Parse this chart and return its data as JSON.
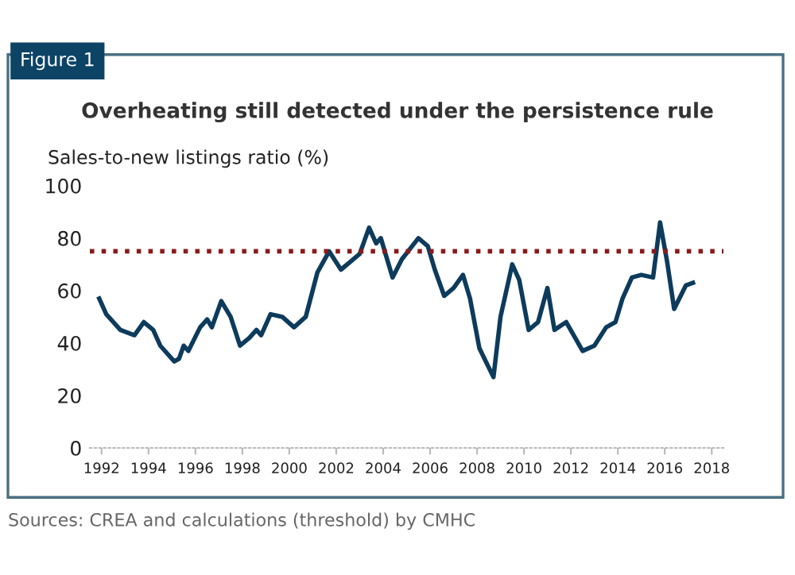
{
  "chart_data": {
    "type": "line",
    "title": "Overheating still detected under the persistence rule",
    "ylabel": "Sales-to-new listings ratio (%)",
    "annotations": [
      "Figure 1",
      "Sources: CREA and calculations (threshold) by CMHC"
    ],
    "series": [
      {
        "color": "#0d3b5c",
        "x": [
          1991.9,
          1992.2,
          1992.8,
          1993.4,
          1993.8,
          1994.2,
          1994.5,
          1995.1,
          1995.3,
          1995.5,
          1995.7,
          1996.2,
          1996.5,
          1996.7,
          1997.1,
          1997.5,
          1997.9,
          1998.3,
          1998.6,
          1998.8,
          1999.2,
          1999.7,
          2000.2,
          2000.7,
          2001.2,
          2001.7,
          2002.2,
          2002.6,
          2003.0,
          2003.4,
          2003.7,
          2003.9,
          2004.4,
          2004.8,
          2005.5,
          2005.9,
          2006.2,
          2006.6,
          2007.0,
          2007.4,
          2007.7,
          2008.1,
          2008.7,
          2009.0,
          2009.5,
          2009.8,
          2010.2,
          2010.6,
          2011.0,
          2011.3,
          2011.8,
          2012.5,
          2013.0,
          2013.5,
          2013.9,
          2014.2,
          2014.6,
          2015.0,
          2015.5,
          2015.8,
          2016.1,
          2016.4,
          2016.9,
          2017.2
        ],
        "values": [
          57,
          51,
          45,
          43,
          48,
          45,
          39,
          33,
          34,
          39,
          37,
          46,
          49,
          46,
          56,
          50,
          39,
          42,
          45,
          43,
          51,
          50,
          46,
          50,
          67,
          75,
          68,
          71,
          74,
          84,
          78,
          80,
          65,
          72,
          80,
          77,
          68,
          58,
          61,
          66,
          57,
          38,
          27,
          50,
          70,
          64,
          45,
          48,
          61,
          45,
          48,
          37,
          39,
          46,
          48,
          57,
          65,
          66,
          65,
          86,
          71,
          53,
          62,
          63
        ]
      }
    ],
    "ref_lines": [
      {
        "axis": "y",
        "value": 75,
        "color": "#8b1a1a",
        "line_style": "dotted"
      }
    ],
    "xlim": [
      1991.5,
      2018.5
    ],
    "xticks": [
      1992,
      1994,
      1996,
      1998,
      2000,
      2002,
      2004,
      2006,
      2008,
      2010,
      2012,
      2014,
      2016,
      2018
    ],
    "ylim": [
      0,
      100
    ],
    "yticks": [
      0,
      20,
      40,
      60,
      80,
      100
    ],
    "grid": false,
    "legend": false
  }
}
